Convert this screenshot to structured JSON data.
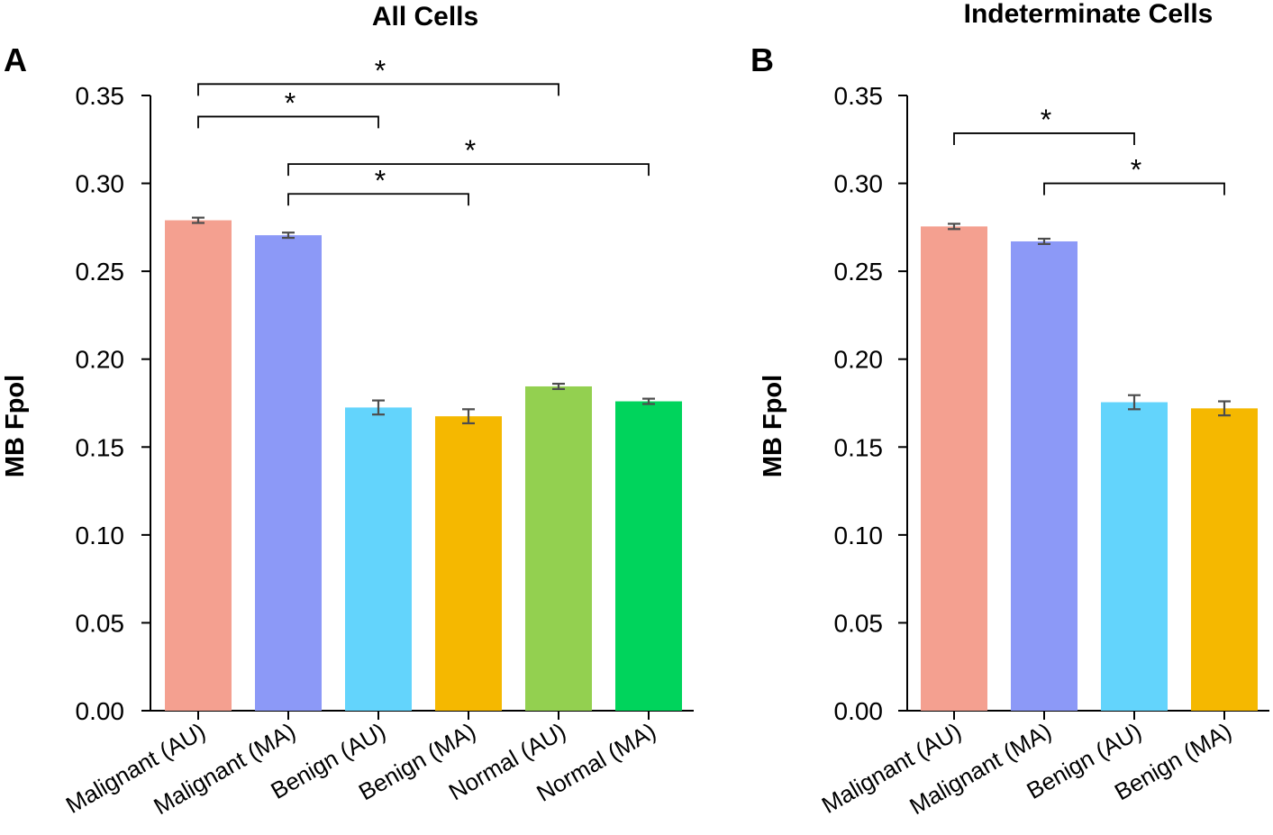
{
  "figure": {
    "panels": [
      {
        "letter": "A"
      },
      {
        "letter": "B"
      }
    ]
  },
  "chart_data": [
    {
      "type": "bar",
      "title": "All Cells",
      "xlabel": "",
      "ylabel": "MB Fpol",
      "ylim": [
        0,
        0.35
      ],
      "yticks": [
        "0.00",
        "0.05",
        "0.10",
        "0.15",
        "0.20",
        "0.25",
        "0.30",
        "0.35"
      ],
      "categories": [
        "Malignant (AU)",
        "Malignant (MA)",
        "Benign (AU)",
        "Benign (MA)",
        "Normal (AU)",
        "Normal (MA)"
      ],
      "values": [
        0.279,
        0.2705,
        0.1725,
        0.1675,
        0.1845,
        0.176
      ],
      "errors": [
        0.0015,
        0.0015,
        0.004,
        0.004,
        0.0015,
        0.0015
      ],
      "colors": [
        "#f4a090",
        "#8c99f7",
        "#63d4fc",
        "#f5b800",
        "#93d050",
        "#00d45c"
      ],
      "significance": [
        {
          "from": 0,
          "to": 4,
          "y": 0.3565,
          "label": "*"
        },
        {
          "from": 0,
          "to": 2,
          "y": 0.338,
          "label": "*"
        },
        {
          "from": 1,
          "to": 5,
          "y": 0.311,
          "label": "*"
        },
        {
          "from": 1,
          "to": 3,
          "y": 0.294,
          "label": "*"
        }
      ]
    },
    {
      "type": "bar",
      "title": "Indeterminate Cells",
      "xlabel": "",
      "ylabel": "MB Fpol",
      "ylim": [
        0,
        0.35
      ],
      "yticks": [
        "0.00",
        "0.05",
        "0.10",
        "0.15",
        "0.20",
        "0.25",
        "0.30",
        "0.35"
      ],
      "categories": [
        "Malignant (AU)",
        "Malignant (MA)",
        "Benign (AU)",
        "Benign (MA)"
      ],
      "values": [
        0.2755,
        0.267,
        0.1755,
        0.172
      ],
      "errors": [
        0.0015,
        0.0015,
        0.004,
        0.004
      ],
      "colors": [
        "#f4a090",
        "#8c99f7",
        "#63d4fc",
        "#f5b800"
      ],
      "significance": [
        {
          "from": 0,
          "to": 2,
          "y": 0.3285,
          "label": "*"
        },
        {
          "from": 1,
          "to": 3,
          "y": 0.3,
          "label": "*"
        }
      ]
    }
  ]
}
